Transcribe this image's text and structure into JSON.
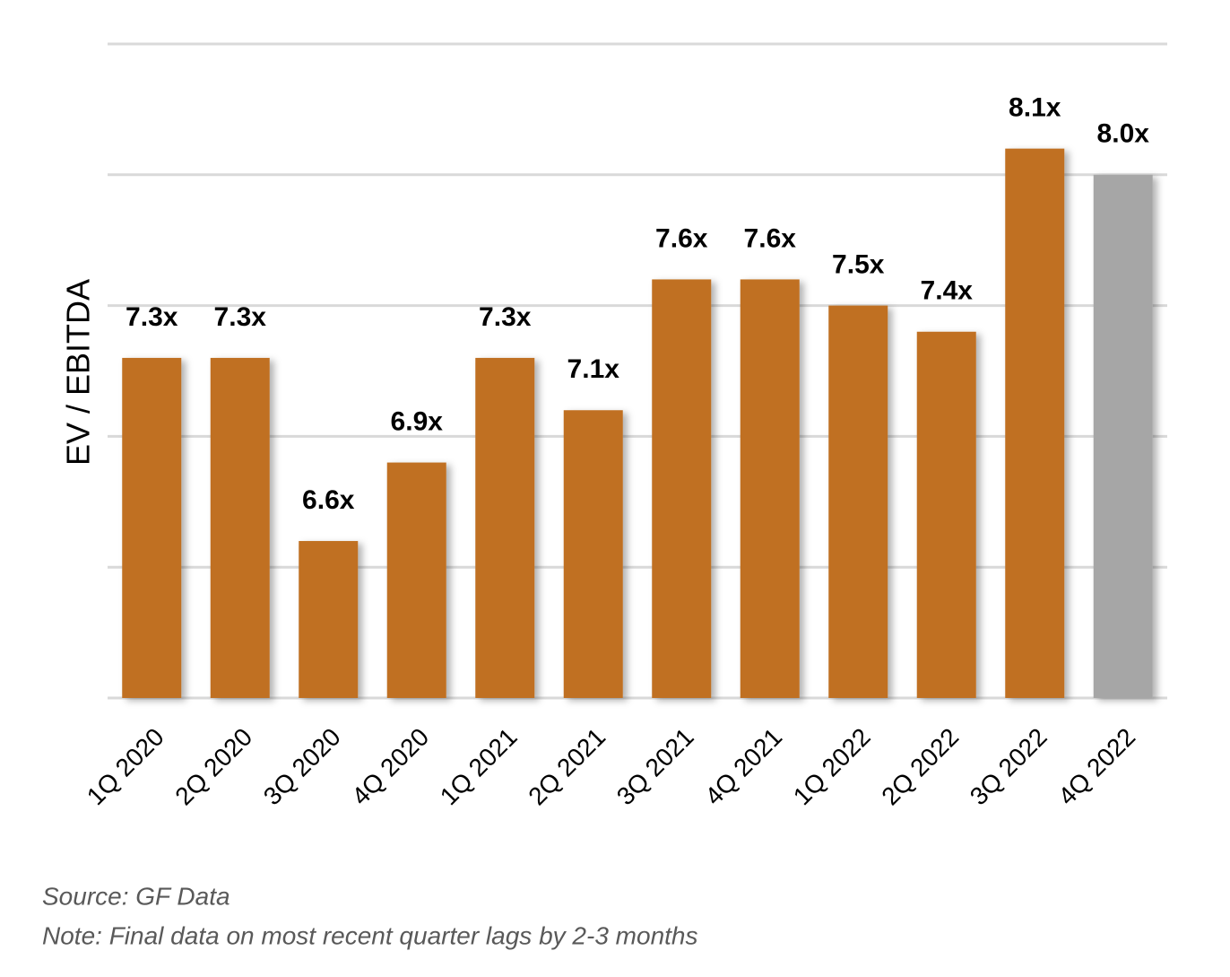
{
  "chart_data": {
    "type": "bar",
    "y_label": "EV / EBITDA",
    "categories": [
      "1Q 2020",
      "2Q 2020",
      "3Q 2020",
      "4Q 2020",
      "1Q 2021",
      "2Q 2021",
      "3Q 2021",
      "4Q 2021",
      "1Q 2022",
      "2Q 2022",
      "3Q 2022",
      "4Q 2022"
    ],
    "values": [
      7.3,
      7.3,
      6.6,
      6.9,
      7.3,
      7.1,
      7.6,
      7.6,
      7.5,
      7.4,
      8.1,
      8.0
    ],
    "value_labels": [
      "7.3x",
      "7.3x",
      "6.6x",
      "6.9x",
      "7.3x",
      "7.1x",
      "7.6x",
      "7.6x",
      "7.5x",
      "7.4x",
      "8.1x",
      "8.0x"
    ],
    "colors": [
      "#c07020",
      "#c07020",
      "#c07020",
      "#c07020",
      "#c07020",
      "#c07020",
      "#c07020",
      "#c07020",
      "#c07020",
      "#c07020",
      "#c07020",
      "#a6a6a6"
    ],
    "ylim": [
      6,
      8.5
    ],
    "yticks": [
      6,
      6.5,
      7,
      7.5,
      8,
      8.5
    ],
    "grid": true,
    "notes": [
      "Source: GF Data",
      "Note: Final data on most recent quarter lags by 2-3 months"
    ]
  }
}
